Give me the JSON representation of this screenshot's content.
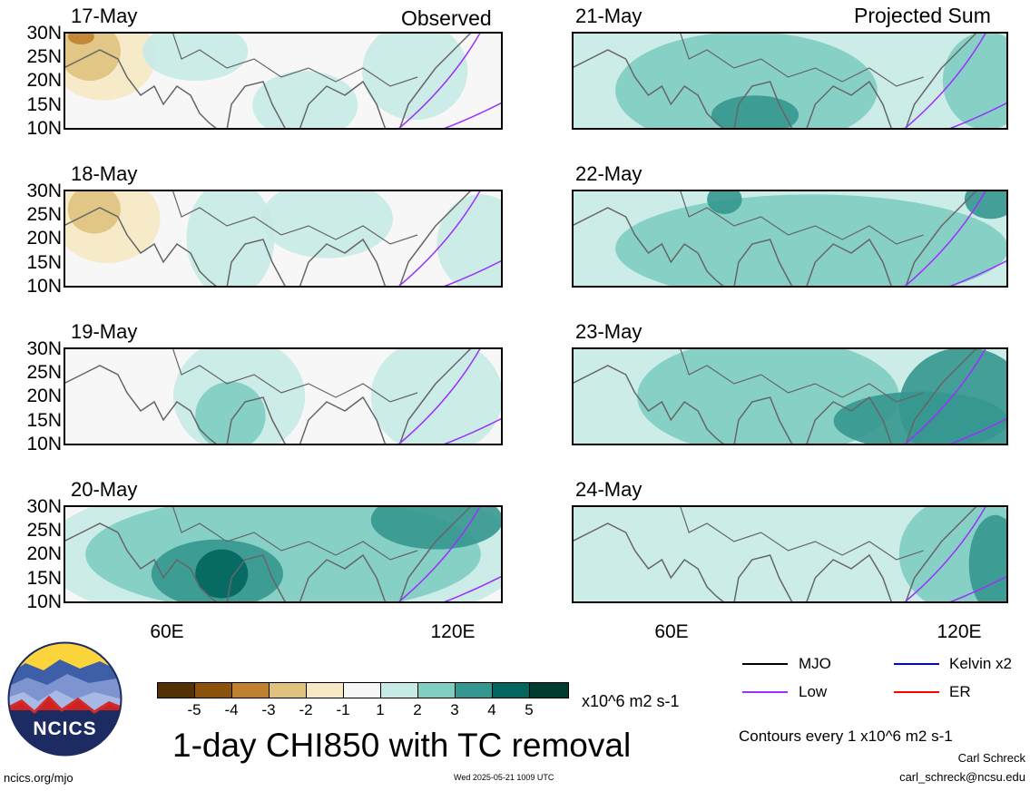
{
  "left_column_title": "Observed",
  "right_column_title": "Projected Sum",
  "left_dates": [
    "17-May",
    "18-May",
    "19-May",
    "20-May"
  ],
  "right_dates": [
    "21-May",
    "22-May",
    "23-May",
    "24-May"
  ],
  "lat_labels": [
    "30N",
    "25N",
    "20N",
    "15N",
    "10N"
  ],
  "lon_labels": [
    "60E",
    "120E"
  ],
  "legend": {
    "mjo": "MJO",
    "low": "Low",
    "kelvin": "Kelvin x2",
    "er": "ER",
    "colors": {
      "mjo": "#000000",
      "low": "#9b30ff",
      "kelvin": "#0000ff",
      "er": "#ff0000"
    }
  },
  "colorbar": {
    "ticks": [
      "-5",
      "-4",
      "-3",
      "-2",
      "-1",
      "1",
      "2",
      "3",
      "4",
      "5"
    ],
    "units": "x10^6 m2 s-1",
    "colors": [
      "#543005",
      "#8c510a",
      "#bf812d",
      "#dfc27d",
      "#f6e8c3",
      "#f7f7f7",
      "#c7eae5",
      "#80cdc1",
      "#35978f",
      "#01665e",
      "#003c30"
    ]
  },
  "title": "1-day CHI850 with TC removal",
  "contours_note": "Contours every 1 x10^6 m2 s-1",
  "footer": {
    "left": "ncics.org/mjo",
    "center": "Wed 2025-05-21 1009 UTC",
    "author": "Carl Schreck",
    "email": "carl_schreck@ncsu.edu"
  },
  "logo_text": "NCICS"
}
